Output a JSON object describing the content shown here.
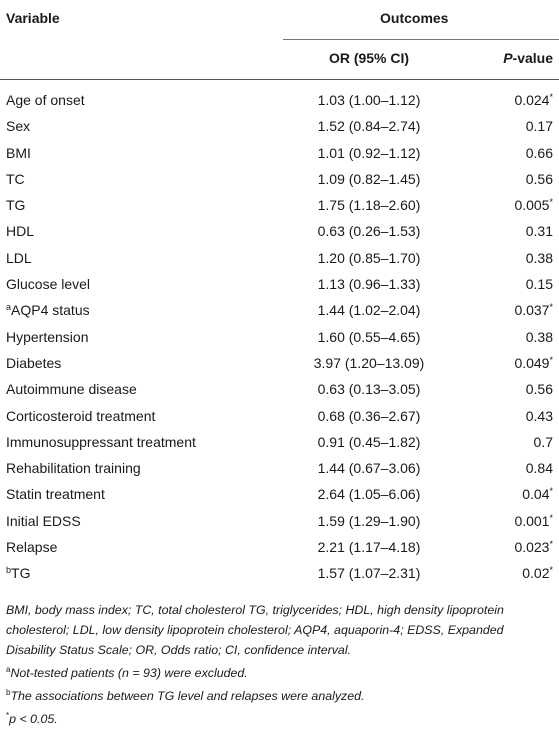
{
  "header": {
    "variable": "Variable",
    "outcomes": "Outcomes",
    "or_ci": "OR (95% CI)",
    "p_italic": "P",
    "p_suffix": "-value"
  },
  "rows": [
    {
      "variable": "Age of onset",
      "sup": "",
      "or": "1.03 (1.00–1.12)",
      "p": "0.024",
      "star": "*"
    },
    {
      "variable": "Sex",
      "sup": "",
      "or": "1.52 (0.84–2.74)",
      "p": "0.17",
      "star": ""
    },
    {
      "variable": "BMI",
      "sup": "",
      "or": "1.01 (0.92–1.12)",
      "p": "0.66",
      "star": ""
    },
    {
      "variable": "TC",
      "sup": "",
      "or": "1.09 (0.82–1.45)",
      "p": "0.56",
      "star": ""
    },
    {
      "variable": "TG",
      "sup": "",
      "or": "1.75 (1.18–2.60)",
      "p": "0.005",
      "star": "*"
    },
    {
      "variable": "HDL",
      "sup": "",
      "or": "0.63 (0.26–1.53)",
      "p": "0.31",
      "star": ""
    },
    {
      "variable": "LDL",
      "sup": "",
      "or": "1.20 (0.85–1.70)",
      "p": "0.38",
      "star": ""
    },
    {
      "variable": "Glucose level",
      "sup": "",
      "or": "1.13 (0.96–1.33)",
      "p": "0.15",
      "star": ""
    },
    {
      "variable": "AQP4 status",
      "sup": "a",
      "or": "1.44 (1.02–2.04)",
      "p": "0.037",
      "star": "*"
    },
    {
      "variable": "Hypertension",
      "sup": "",
      "or": "1.60 (0.55–4.65)",
      "p": "0.38",
      "star": ""
    },
    {
      "variable": "Diabetes",
      "sup": "",
      "or": "3.97 (1.20–13.09)",
      "p": "0.049",
      "star": "*"
    },
    {
      "variable": "Autoimmune disease",
      "sup": "",
      "or": "0.63 (0.13–3.05)",
      "p": "0.56",
      "star": ""
    },
    {
      "variable": "Corticosteroid treatment",
      "sup": "",
      "or": "0.68 (0.36–2.67)",
      "p": "0.43",
      "star": ""
    },
    {
      "variable": "Immunosuppressant treatment",
      "sup": "",
      "or": "0.91 (0.45–1.82)",
      "p": "0.7",
      "star": ""
    },
    {
      "variable": "Rehabilitation training",
      "sup": "",
      "or": "1.44 (0.67–3.06)",
      "p": "0.84",
      "star": ""
    },
    {
      "variable": "Statin treatment",
      "sup": "",
      "or": "2.64 (1.05–6.06)",
      "p": "0.04",
      "star": "*"
    },
    {
      "variable": "Initial EDSS",
      "sup": "",
      "or": "1.59 (1.29–1.90)",
      "p": "0.001",
      "star": "*"
    },
    {
      "variable": "Relapse",
      "sup": "",
      "or": "2.21 (1.17–4.18)",
      "p": "0.023",
      "star": "*"
    },
    {
      "variable": "TG",
      "sup": "b",
      "or": "1.57 (1.07–2.31)",
      "p": "0.02",
      "star": "*"
    }
  ],
  "notes": {
    "abbrev": "BMI, body mass index; TC, total cholesterol TG, triglycerides; HDL, high density lipoprotein cholesterol; LDL, low density lipoprotein cholesterol; AQP4, aquaporin-4; EDSS, Expanded Disability Status Scale; OR, Odds ratio; CI, confidence interval.",
    "a_mark": "a",
    "a_text": "Not-tested patients (n = 93) were excluded.",
    "b_mark": "b",
    "b_text": "The associations between TG level and relapses were analyzed.",
    "star_mark": "*",
    "star_text": "p < 0.05."
  }
}
